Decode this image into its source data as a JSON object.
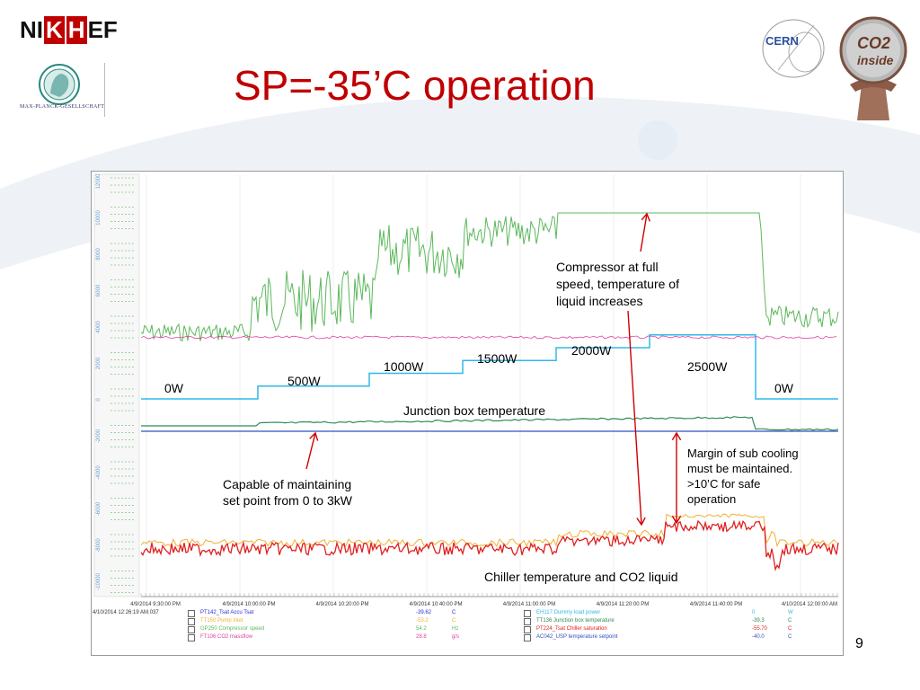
{
  "header": {
    "title": "SP=-35’C operation",
    "logo_nikhef": [
      "NI",
      "K",
      "H",
      "EF"
    ],
    "logo_mpg_label": "MAX-PLANCK-GESELLSCHAFT",
    "logo_cern": "CERN",
    "logo_co2_line1": "CO2",
    "logo_co2_line2": "inside"
  },
  "annotations": {
    "compressor": [
      "Compressor at full",
      "speed, temperature of",
      "liquid increases"
    ],
    "margin": [
      "Margin of sub cooling",
      "must be maintained.",
      ">10’C for safe",
      "operation"
    ],
    "capable": [
      "Capable of maintaining",
      "set point from 0 to 3kW"
    ],
    "chiller": "Chiller temperature and CO2 liquid",
    "junction": "Junction box temperature"
  },
  "power_labels": [
    "0W",
    "500W",
    "1000W",
    "1500W",
    "2000W",
    "2500W",
    "0W"
  ],
  "page_number": "9",
  "status": {
    "timestamp": "4/10/2014 12:26:19 AM.037",
    "legend_left": [
      {
        "tag": "PT142_Tsat Accu Tsat",
        "value": "-39.62",
        "unit": "C",
        "color": "#2b2bd8"
      },
      {
        "tag": "TT150 Pump inlet",
        "value": "-53.2",
        "unit": "C",
        "color": "#f0b030"
      },
      {
        "tag": "GP250 Compressor speed",
        "value": "54.2",
        "unit": "Hz",
        "color": "#5cb85c"
      },
      {
        "tag": "FT106 CO2 massflow",
        "value": "28.8",
        "unit": "g/s",
        "color": "#e040a0"
      }
    ],
    "legend_right": [
      {
        "tag": "EH117 Dummy load power",
        "value": "0",
        "unit": "W",
        "color": "#30b8e8"
      },
      {
        "tag": "TT136 Junction box temperature",
        "value": "-39.3",
        "unit": "C",
        "color": "#2e8b57"
      },
      {
        "tag": "PT224_Tsat Chiller saturation",
        "value": "-55.70",
        "unit": "C",
        "color": "#e02020"
      },
      {
        "tag": "AC042_USP temperature setpoint",
        "value": "-40.0",
        "unit": "C",
        "color": "#3050c0"
      }
    ]
  },
  "chart_data": {
    "type": "line",
    "x_ticks": [
      "4/9/2014 9:30:00 PM",
      "4/9/2014 10:00:00 PM",
      "4/9/2014 10:20:00 PM",
      "4/9/2014 10:40:00 PM",
      "4/9/2014 11:00:00 PM",
      "4/9/2014 11:20:00 PM",
      "4/9/2014 11:40:00 PM",
      "4/10/2014 12:00:00 AM"
    ],
    "y_ticks_upper": [
      "12000",
      "10000",
      "8000",
      "6000",
      "4000",
      "2000",
      "0",
      "-2000",
      "-4000",
      "-6000",
      "-8000",
      "-10000"
    ],
    "series": [
      {
        "name": "EH117 Dummy load power",
        "color": "#30b8e8",
        "x": [
          0,
          0.17,
          0.33,
          0.5,
          0.67,
          0.83,
          0.9,
          1.0
        ],
        "y": [
          0,
          500,
          1000,
          1500,
          2000,
          2500,
          0,
          0
        ]
      },
      {
        "name": "GP250 Compressor speed",
        "color": "#5cb85c"
      },
      {
        "name": "FT106 CO2 massflow",
        "color": "#e040a0"
      },
      {
        "name": "TT136 Junction box temperature",
        "color": "#2e8b57"
      },
      {
        "name": "AC042_USP temperature setpoint",
        "color": "#3050c0"
      },
      {
        "name": "PT224_Tsat Chiller saturation",
        "color": "#e02020"
      },
      {
        "name": "TT150 Pump inlet",
        "color": "#f0b030"
      }
    ]
  }
}
